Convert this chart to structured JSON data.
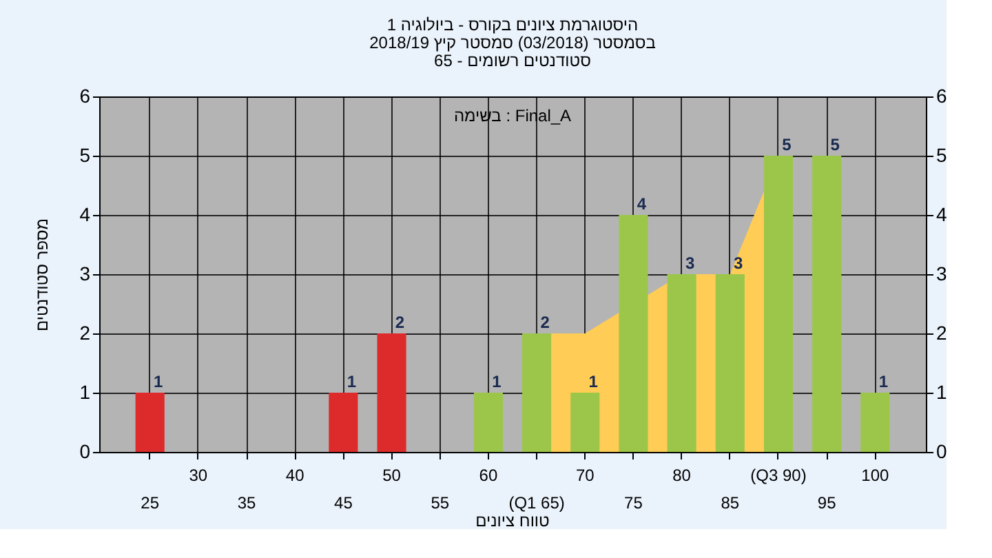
{
  "chart_data": {
    "type": "bar",
    "title": [
      "היסטוגרמת ציונים בקורס - ביולוגיה 1",
      "בסמסטר  (03/2018)  סמסטר קיץ 2018/19",
      "סטודנטים רשומים - 65"
    ],
    "xlabel": "טווח ציונים",
    "ylabel": "מספר סטודנטים",
    "annotations": [
      "בשימה : Final_A"
    ],
    "categories": [
      "25",
      "30",
      "35",
      "40",
      "45",
      "50",
      "55",
      "60",
      "(Q1 65)",
      "70",
      "75",
      "80",
      "85",
      "(Q3 90)",
      "95",
      "100"
    ],
    "series": [
      {
        "type": "area",
        "color": "#ffcc55",
        "values": [
          null,
          null,
          null,
          null,
          null,
          null,
          null,
          null,
          2,
          2,
          null,
          3,
          3,
          5,
          null,
          null
        ]
      },
      {
        "type": "bar",
        "colors": [
          "#dd2b2b",
          "#dd2b2b",
          "#dd2b2b",
          "#dd2b2b",
          "#dd2b2b",
          "#dd2b2b",
          "#dd2b2b",
          "#9cc64a",
          "#9cc64a",
          "#9cc64a",
          "#9cc64a",
          "#9cc64a",
          "#9cc64a",
          "#9cc64a",
          "#9cc64a",
          "#9cc64a"
        ],
        "values": [
          1,
          0,
          0,
          0,
          1,
          2,
          0,
          1,
          2,
          1,
          4,
          3,
          3,
          5,
          5,
          1
        ],
        "value_labels": [
          "1",
          null,
          null,
          null,
          "1",
          "2",
          null,
          "1",
          "2",
          "1",
          "4",
          "3",
          "3",
          "5",
          "5",
          "1"
        ]
      }
    ],
    "ylim": [
      0,
      6
    ],
    "yticks": [
      0,
      1,
      2,
      3,
      4,
      5,
      6
    ],
    "y2lim": [
      0,
      6
    ],
    "y2ticks": [
      0,
      1,
      2,
      3,
      4,
      5,
      6
    ],
    "grid": true
  }
}
